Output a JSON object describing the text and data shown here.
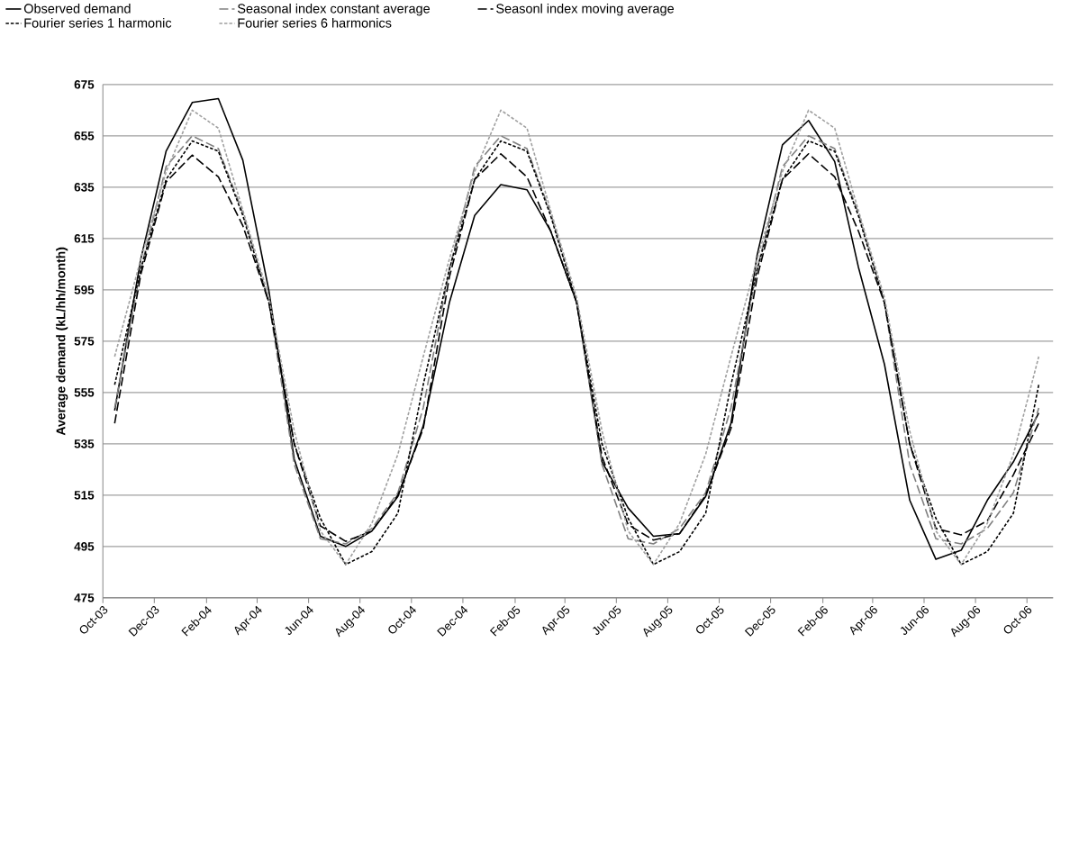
{
  "chart_data": {
    "type": "line",
    "ylabel": "Average demand (kL/hh/month)",
    "x": [
      "2003-10-15",
      "2003-11-15",
      "2003-12-15",
      "2004-01-15",
      "2004-02-15",
      "2004-03-15",
      "2004-04-15",
      "2004-05-15",
      "2004-06-15",
      "2004-07-15",
      "2004-08-15",
      "2004-09-15",
      "2004-10-15",
      "2004-11-15",
      "2004-12-15",
      "2005-01-15",
      "2005-02-15",
      "2005-03-15",
      "2005-04-15",
      "2005-05-15",
      "2005-06-15",
      "2005-07-15",
      "2005-08-15",
      "2005-09-15",
      "2005-10-15",
      "2005-11-15",
      "2005-12-15",
      "2006-01-15",
      "2006-02-15",
      "2006-03-15",
      "2006-04-15",
      "2006-05-15",
      "2006-06-15",
      "2006-07-15",
      "2006-08-15",
      "2006-09-15",
      "2006-10-15"
    ],
    "series": [
      {
        "name": "Observed demand",
        "color": "#000000",
        "line_style": "solid",
        "values": [
          548,
          607,
          649,
          668,
          669.5,
          645.5,
          594.5,
          529,
          499,
          495,
          501,
          514.5,
          542,
          590,
          624,
          636,
          634,
          618,
          590,
          528,
          510,
          499,
          500,
          514.5,
          543,
          608.5,
          651.5,
          661,
          645,
          604,
          566,
          513,
          490,
          493.5,
          513,
          528,
          547
        ]
      },
      {
        "name": "Seasonal index constant average",
        "color": "#808080",
        "line_style": "dashed",
        "values": [
          549,
          603,
          643,
          655,
          650,
          625,
          590,
          527,
          498,
          496,
          502,
          516,
          549,
          603,
          643,
          655,
          650,
          625,
          590,
          527,
          498,
          496,
          502,
          516,
          549,
          603,
          643,
          655,
          650,
          625,
          590,
          527,
          498,
          496,
          502,
          516,
          549
        ]
      },
      {
        "name": "Seasonl index moving average",
        "color": "#000000",
        "line_style": "dashed",
        "values": [
          543,
          601,
          637,
          647.5,
          639,
          620,
          590,
          535,
          503,
          497,
          501,
          515,
          541,
          600,
          638,
          648,
          639,
          618,
          590,
          530,
          503.5,
          497.5,
          500,
          515,
          541,
          600,
          638,
          648,
          639,
          618,
          590,
          535,
          502,
          499.5,
          505,
          523,
          543
        ]
      },
      {
        "name": "Fourier series 1 harmonic",
        "color": "#000000",
        "line_style": "dotted",
        "values": [
          558,
          603,
          638,
          653,
          649,
          624,
          590,
          535,
          506,
          488,
          493,
          508,
          558,
          603,
          638,
          653,
          649,
          624,
          590,
          535,
          506,
          488,
          493,
          508,
          558,
          603,
          638,
          653,
          649,
          624,
          590,
          535,
          506,
          488,
          493,
          508,
          558
        ]
      },
      {
        "name": "Fourier series 6 harmonics",
        "color": "#a0a0a0",
        "line_style": "dotted",
        "values": [
          569,
          607,
          641,
          665,
          658,
          626,
          592,
          540,
          501,
          488,
          504,
          531,
          569,
          607,
          641,
          665,
          658,
          626,
          592,
          540,
          501,
          488,
          504,
          531,
          569,
          607,
          641,
          665,
          658,
          626,
          592,
          540,
          501,
          488,
          504,
          531,
          569
        ]
      }
    ],
    "xlim": [
      "2003-10-01",
      "2006-11-01"
    ],
    "xticks": [
      {
        "value": "2003-10-01",
        "label": "Oct-03"
      },
      {
        "value": "2003-12-01",
        "label": "Dec-03"
      },
      {
        "value": "2004-02-01",
        "label": "Feb-04"
      },
      {
        "value": "2004-04-01",
        "label": "Apr-04"
      },
      {
        "value": "2004-06-01",
        "label": "Jun-04"
      },
      {
        "value": "2004-08-01",
        "label": "Aug-04"
      },
      {
        "value": "2004-10-01",
        "label": "Oct-04"
      },
      {
        "value": "2004-12-01",
        "label": "Dec-04"
      },
      {
        "value": "2005-02-01",
        "label": "Feb-05"
      },
      {
        "value": "2005-04-01",
        "label": "Apr-05"
      },
      {
        "value": "2005-06-01",
        "label": "Jun-05"
      },
      {
        "value": "2005-08-01",
        "label": "Aug-05"
      },
      {
        "value": "2005-10-01",
        "label": "Oct-05"
      },
      {
        "value": "2005-12-01",
        "label": "Dec-05"
      },
      {
        "value": "2006-02-01",
        "label": "Feb-06"
      },
      {
        "value": "2006-04-01",
        "label": "Apr-06"
      },
      {
        "value": "2006-06-01",
        "label": "Jun-06"
      },
      {
        "value": "2006-08-01",
        "label": "Aug-06"
      },
      {
        "value": "2006-10-01",
        "label": "Oct-06"
      }
    ],
    "ylim": [
      475,
      675
    ],
    "yticks": [
      475,
      495,
      515,
      535,
      555,
      575,
      595,
      615,
      635,
      655,
      675
    ],
    "grid": "y",
    "legend": "top",
    "marker": "none"
  }
}
